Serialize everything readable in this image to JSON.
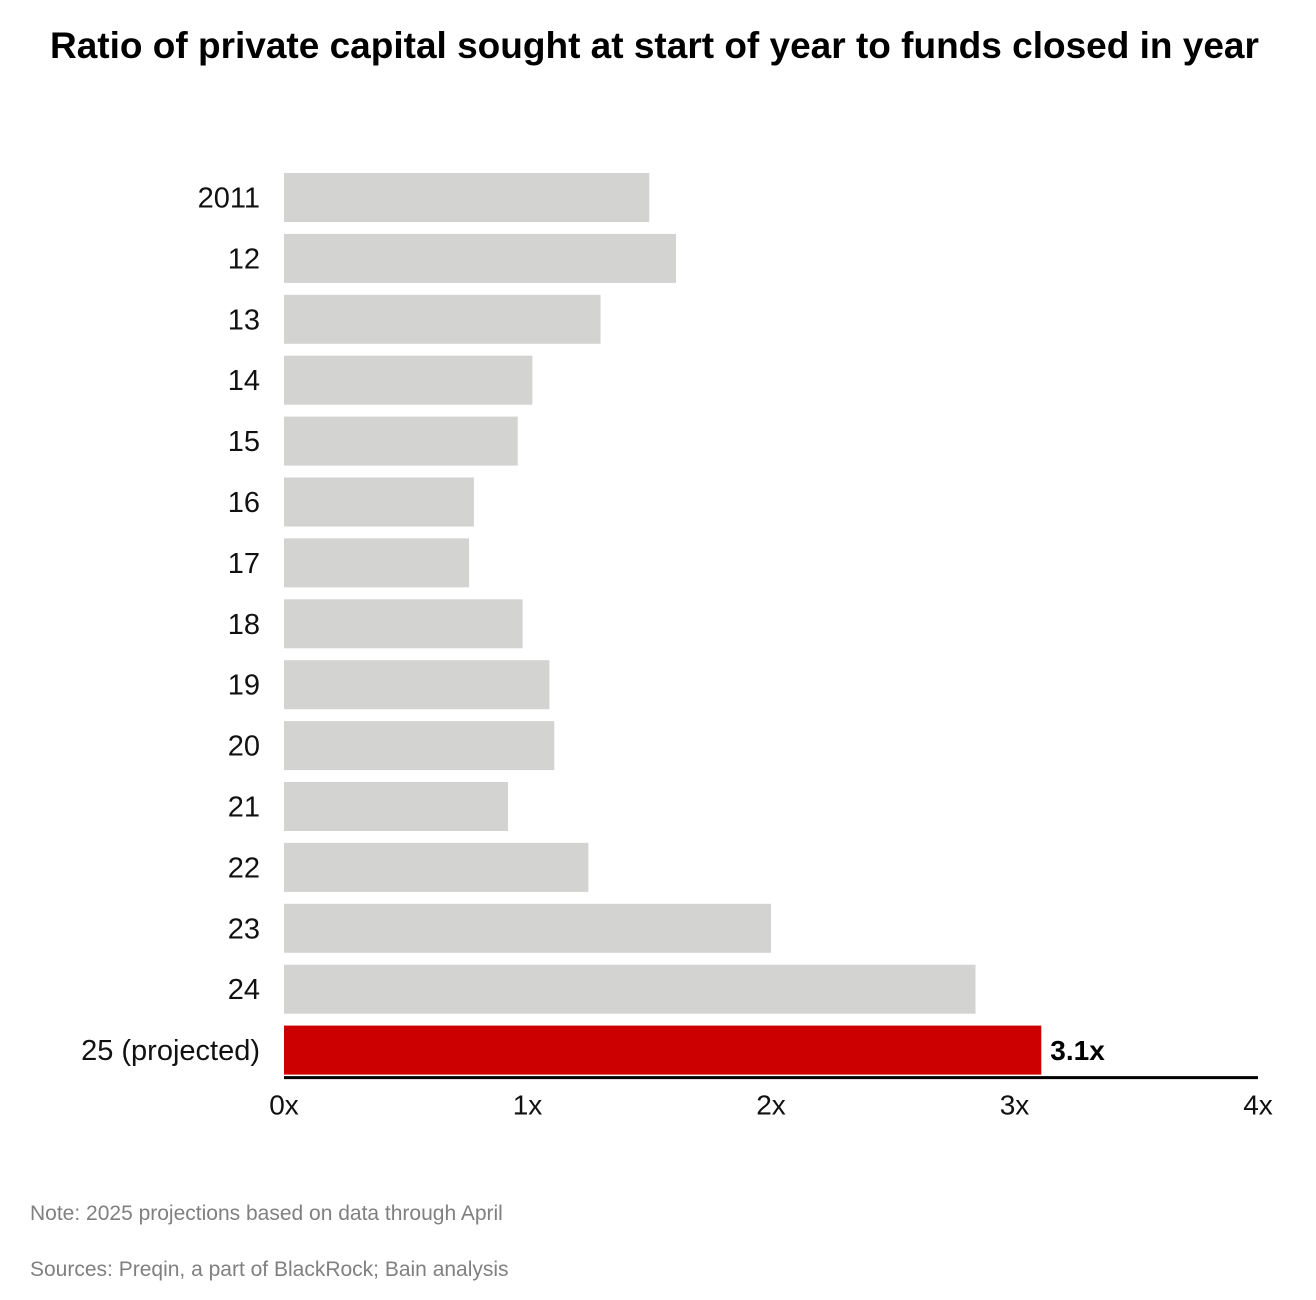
{
  "chart_data": {
    "type": "bar",
    "orientation": "horizontal",
    "title": "Ratio of private capital sought at start of year to funds closed in year",
    "categories": [
      "2011",
      "12",
      "13",
      "14",
      "15",
      "16",
      "17",
      "18",
      "19",
      "20",
      "21",
      "22",
      "23",
      "24",
      "25 (projected)"
    ],
    "values": [
      1.5,
      1.61,
      1.3,
      1.02,
      0.96,
      0.78,
      0.76,
      0.98,
      1.09,
      1.11,
      0.92,
      1.25,
      2.0,
      2.84,
      3.11
    ],
    "highlight_index": 14,
    "highlight_label": "3.1x",
    "xlim": [
      0,
      4
    ],
    "x_ticks": [
      "0x",
      "1x",
      "2x",
      "3x",
      "4x"
    ],
    "xlabel": "",
    "ylabel": "",
    "grid": false,
    "colors": {
      "bar": "#d3d3d2",
      "highlight": "#cc0000",
      "axis": "#000000"
    }
  },
  "footer": {
    "note": "Note: 2025 projections based on data through April",
    "sources": "Sources: Preqin, a part of BlackRock; Bain analysis"
  }
}
